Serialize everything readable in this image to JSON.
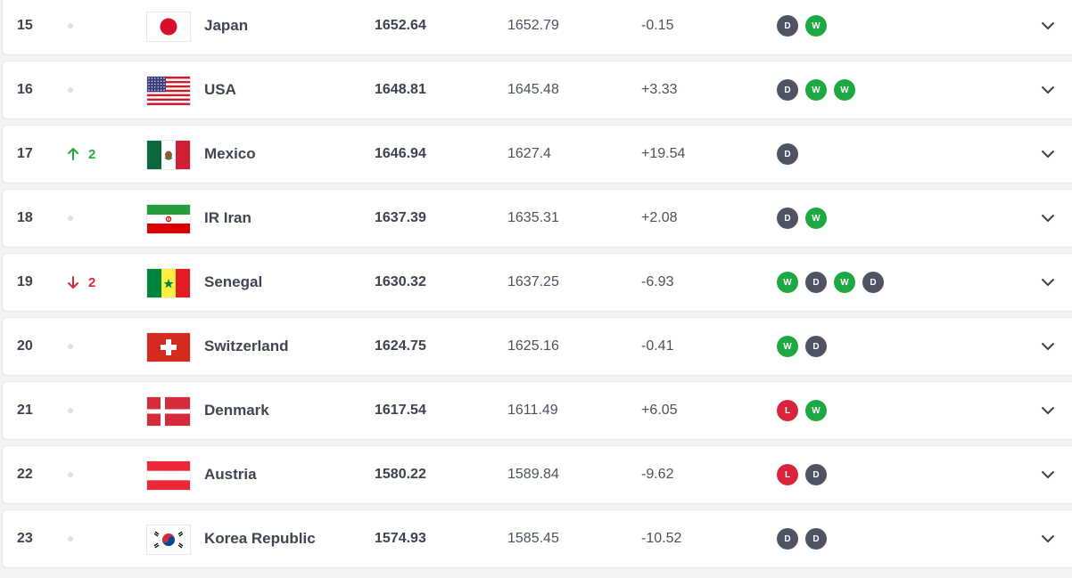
{
  "rows": [
    {
      "rank": "15",
      "move": "none",
      "move_label": "",
      "flag": "japan",
      "flag_icon": "japan-flag-icon",
      "name": "Japan",
      "points": "1652.64",
      "prev": "1652.79",
      "diff": "-0.15",
      "form": [
        "D",
        "W"
      ]
    },
    {
      "rank": "16",
      "move": "none",
      "move_label": "",
      "flag": "usa",
      "flag_icon": "usa-flag-icon",
      "name": "USA",
      "points": "1648.81",
      "prev": "1645.48",
      "diff": "+3.33",
      "form": [
        "D",
        "W",
        "W"
      ]
    },
    {
      "rank": "17",
      "move": "up",
      "move_label": "2",
      "flag": "mexico",
      "flag_icon": "mexico-flag-icon",
      "name": "Mexico",
      "points": "1646.94",
      "prev": "1627.4",
      "diff": "+19.54",
      "form": [
        "D"
      ]
    },
    {
      "rank": "18",
      "move": "none",
      "move_label": "",
      "flag": "iran",
      "flag_icon": "iran-flag-icon",
      "name": "IR Iran",
      "points": "1637.39",
      "prev": "1635.31",
      "diff": "+2.08",
      "form": [
        "D",
        "W"
      ]
    },
    {
      "rank": "19",
      "move": "down",
      "move_label": "2",
      "flag": "senegal",
      "flag_icon": "senegal-flag-icon",
      "name": "Senegal",
      "points": "1630.32",
      "prev": "1637.25",
      "diff": "-6.93",
      "form": [
        "W",
        "D",
        "W",
        "D"
      ]
    },
    {
      "rank": "20",
      "move": "none",
      "move_label": "",
      "flag": "switzerland",
      "flag_icon": "switzerland-flag-icon",
      "name": "Switzerland",
      "points": "1624.75",
      "prev": "1625.16",
      "diff": "-0.41",
      "form": [
        "W",
        "D"
      ]
    },
    {
      "rank": "21",
      "move": "none",
      "move_label": "",
      "flag": "denmark",
      "flag_icon": "denmark-flag-icon",
      "name": "Denmark",
      "points": "1617.54",
      "prev": "1611.49",
      "diff": "+6.05",
      "form": [
        "L",
        "W"
      ]
    },
    {
      "rank": "22",
      "move": "none",
      "move_label": "",
      "flag": "austria",
      "flag_icon": "austria-flag-icon",
      "name": "Austria",
      "points": "1580.22",
      "prev": "1589.84",
      "diff": "-9.62",
      "form": [
        "L",
        "D"
      ]
    },
    {
      "rank": "23",
      "move": "none",
      "move_label": "",
      "flag": "korea",
      "flag_icon": "korea-republic-flag-icon",
      "name": "Korea Republic",
      "points": "1574.93",
      "prev": "1585.45",
      "diff": "-10.52",
      "form": [
        "D",
        "D"
      ]
    }
  ],
  "colors": {
    "win": "#1fa744",
    "draw": "#4e5362",
    "loss": "#d8253c",
    "up": "#27a844",
    "down": "#d52b3b"
  },
  "icons": {
    "expand": "chevron-down-icon",
    "up": "arrow-up-icon",
    "down": "arrow-down-icon",
    "no_change": "no-change-dot-icon"
  }
}
